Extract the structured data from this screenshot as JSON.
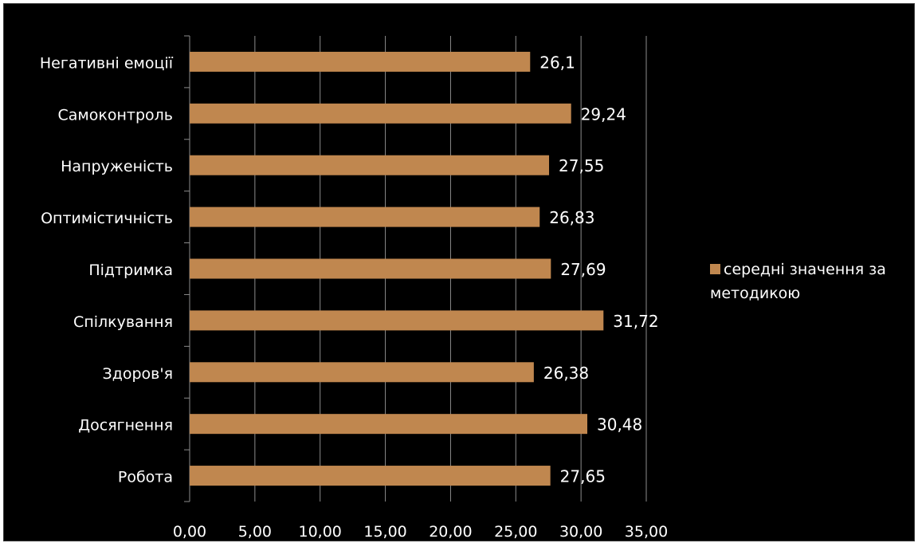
{
  "chart_data": {
    "type": "bar",
    "orientation": "horizontal",
    "categories": [
      "Робота",
      "Досягнення",
      "Здоров'я",
      "Спілкування",
      "Підтримка",
      "Оптимістичність",
      "Напруженість",
      "Самоконтроль",
      "Негативні емоції"
    ],
    "series": [
      {
        "name": "середні значення за методикою",
        "values": [
          27.65,
          30.48,
          26.38,
          31.72,
          27.69,
          26.83,
          27.55,
          29.24,
          26.1
        ],
        "data_labels": [
          "27,65",
          "30,48",
          "26,38",
          "31,72",
          "27,69",
          "26,83",
          "27,55",
          "29,24",
          "26,1"
        ],
        "color": "#C0874F"
      }
    ],
    "x_ticks": [
      "0,00",
      "5,00",
      "10,00",
      "15,00",
      "20,00",
      "25,00",
      "30,00",
      "35,00"
    ],
    "xlim": [
      0,
      35
    ],
    "grid": true,
    "legend_position": "right",
    "background": "#000000"
  },
  "legend": {
    "label": "середні значення за методикою"
  }
}
